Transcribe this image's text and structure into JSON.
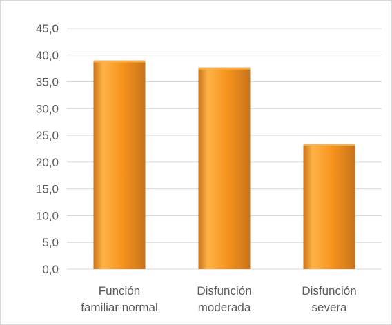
{
  "chart_data": {
    "type": "bar",
    "categories": [
      [
        "Función",
        "familiar normal"
      ],
      [
        "Disfunción",
        "moderada"
      ],
      [
        "Disfunción",
        "severa"
      ]
    ],
    "values": [
      39.0,
      37.7,
      23.4
    ],
    "ylim": [
      0,
      45
    ],
    "yticks": [
      "0,0",
      "5,0",
      "10,0",
      "15,0",
      "20,0",
      "25,0",
      "30,0",
      "35,0",
      "40,0",
      "45,0"
    ],
    "ytick_step": 5,
    "grid": true,
    "bar_color_light": "#FFB347",
    "bar_color": "#F7941D",
    "bar_color_dark": "#C8731A",
    "gridline_color": "#d9d9d9"
  }
}
